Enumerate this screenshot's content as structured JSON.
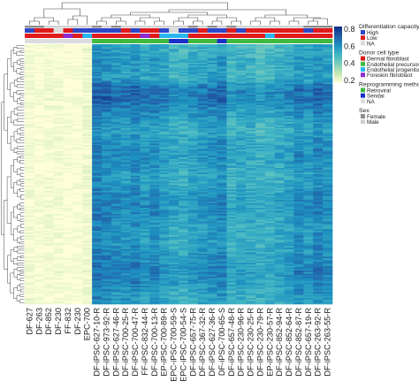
{
  "chart_data": {
    "type": "heatmap",
    "title": "",
    "xlabel": "",
    "ylabel": "",
    "grid": false,
    "color_scale": {
      "min": 0.2,
      "max": 0.8,
      "ticks": [
        "0.2",
        "0.4",
        "0.6",
        "0.8"
      ],
      "colors": [
        "#ffffd9",
        "#c7e9b4",
        "#7fcdbb",
        "#41b6c4",
        "#1d91c0",
        "#225ea8",
        "#0c2c84"
      ]
    },
    "columns": [
      "DF-627",
      "DF-263",
      "DF-852",
      "DF-230",
      "FF-832",
      "DF-230",
      "EPC-700",
      "DF-iPSC-627-10-R",
      "DF-iPSC-973-92-R",
      "DF-iPSC-627-46-R",
      "DF-iPSC-700-25-R",
      "DF-iPSC-700-47-R",
      "FF-iPSC-832-44-R",
      "DF-iPSC-700-13-R",
      "EP-iPSC-700-89-R",
      "EPC-iPSC-700-59-S",
      "EPC-iPSC-700-54-S",
      "DF-iPSC-657-75-R",
      "DF-iPSC-367-32-R",
      "DF-iPSC-627-36-R",
      "DF-iPSC-700-65-S",
      "DF-iPSC-657-48-R",
      "DF-iPSC-230-96-R",
      "DF-iPSC-230-25-R",
      "DF-iPSC-230-79-R",
      "EP-iPSC-230-57-R",
      "DF-iPSC-852-94-R",
      "DF-iPSC-852-64-R",
      "DF-iPSC-852-87-R",
      "DF-iPSC-657-19-R",
      "DF-iPSC-263-92-R",
      "DF-iPSC-263-55-R"
    ],
    "column_means": [
      0.22,
      0.21,
      0.22,
      0.22,
      0.21,
      0.21,
      0.23,
      0.68,
      0.66,
      0.64,
      0.63,
      0.66,
      0.62,
      0.64,
      0.61,
      0.58,
      0.57,
      0.6,
      0.62,
      0.63,
      0.65,
      0.56,
      0.58,
      0.57,
      0.55,
      0.56,
      0.58,
      0.6,
      0.65,
      0.62,
      0.66,
      0.63
    ],
    "row_profile": [
      0.55,
      0.6,
      0.62,
      0.58,
      0.9,
      0.92,
      0.8,
      0.65,
      0.6,
      0.68,
      0.72,
      0.7,
      0.62,
      0.66,
      0.74,
      0.78,
      0.72,
      0.64,
      0.68,
      0.7,
      0.75,
      0.8,
      0.74,
      0.66,
      0.62
    ],
    "annotations": {
      "differentiation_capacity": [
        "high",
        "low",
        "low",
        "na",
        "low",
        "high",
        "high",
        "high",
        "high",
        "high",
        "low",
        "high",
        "low",
        "low",
        "high",
        "na",
        "high",
        "high",
        "low",
        "high",
        "high",
        "low",
        "high",
        "low",
        "low",
        "low",
        "low",
        "low",
        "low",
        "high",
        "low",
        "low"
      ],
      "donor_cell_type": [
        "df",
        "df",
        "df",
        "df",
        "ff",
        "df",
        "epc",
        "df",
        "df",
        "df",
        "df",
        "df",
        "ff",
        "df",
        "epc",
        "epc",
        "epc",
        "df",
        "df",
        "df",
        "df",
        "df",
        "df",
        "df",
        "df",
        "epc",
        "df",
        "df",
        "df",
        "df",
        "df",
        "df"
      ],
      "reprogramming_method": [
        "na",
        "na",
        "na",
        "na",
        "na",
        "na",
        "na",
        "retro",
        "retro",
        "retro",
        "retro",
        "retro",
        "retro",
        "retro",
        "retro",
        "sendai",
        "sendai",
        "retro",
        "retro",
        "retro",
        "sendai",
        "retro",
        "retro",
        "retro",
        "retro",
        "retro",
        "retro",
        "retro",
        "retro",
        "retro",
        "retro",
        "retro"
      ],
      "sex": [
        "female",
        "female",
        "male",
        "male",
        "male",
        "male",
        "male",
        "female",
        "male",
        "female",
        "male",
        "male",
        "male",
        "male",
        "male",
        "male",
        "male",
        "female",
        "male",
        "female",
        "male",
        "female",
        "male",
        "male",
        "male",
        "male",
        "male",
        "male",
        "male",
        "female",
        "female",
        "female"
      ]
    },
    "legend": {
      "placement": "right",
      "groups": [
        {
          "key": "differentiation_capacity",
          "title": "Differentiation capacity",
          "items": [
            {
              "code": "high",
              "label": "High",
              "color": "#2c47c8"
            },
            {
              "code": "low",
              "label": "Low",
              "color": "#e01b1b"
            },
            {
              "code": "na",
              "label": "NA",
              "color": "#dcdcdc"
            }
          ]
        },
        {
          "key": "donor_cell_type",
          "title": "Donor cell type",
          "items": [
            {
              "code": "df",
              "label": "Dermal fibroblast",
              "color": "#e01b1b"
            },
            {
              "code": "ep",
              "label": "Endothelial precursor",
              "color": "#3fba3f"
            },
            {
              "code": "epc",
              "label": "Endothelial progenitor",
              "color": "#29b6f0"
            },
            {
              "code": "ff",
              "label": "Foreskin fibroblast",
              "color": "#8e2bd0"
            }
          ]
        },
        {
          "key": "reprogramming_method",
          "title": "Reprogramming method",
          "items": [
            {
              "code": "retro",
              "label": "Retroviral",
              "color": "#3fba3f"
            },
            {
              "code": "sendai",
              "label": "Sendai",
              "color": "#1a2fc8"
            },
            {
              "code": "na",
              "label": "NA",
              "color": "#dcdcdc"
            }
          ]
        },
        {
          "key": "sex",
          "title": "Sex",
          "items": [
            {
              "code": "female",
              "label": "Female",
              "color": "#8c8c8c"
            },
            {
              "code": "male",
              "label": "Male",
              "color": "#d0d0d0"
            }
          ]
        }
      ]
    }
  }
}
